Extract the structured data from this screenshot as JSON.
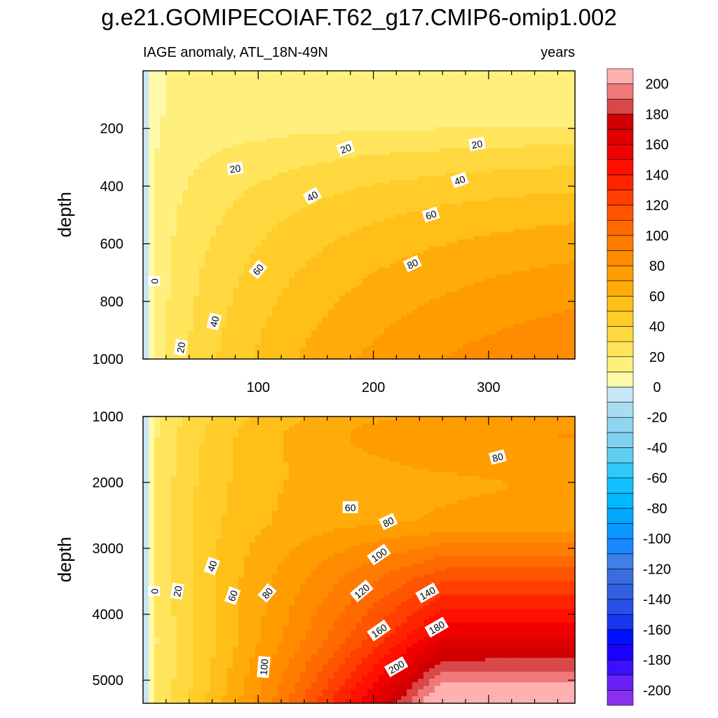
{
  "chart_data": {
    "type": "heatmap",
    "title": "g.e21.GOMIPECOIAF.T62_g17.CMIP6-omip1.002",
    "subtitle_left": "IAGE anomaly, ATL_18N-49N",
    "subtitle_right": "years",
    "x_ticklabels": [
      "100",
      "200",
      "300"
    ],
    "panels": [
      {
        "name": "upper",
        "ylabel": "depth",
        "xlim": [
          0,
          375
        ],
        "ylim": [
          1000,
          0
        ],
        "yticks": [
          200,
          400,
          600,
          800,
          1000
        ],
        "ytick_labels": [
          "200",
          "400",
          "600",
          "800",
          "1000"
        ],
        "contour_labels": [
          {
            "text": "0",
            "x": 10,
            "y": 730,
            "angle": -90
          },
          {
            "text": "20",
            "x": 33,
            "y": 960,
            "angle": -80
          },
          {
            "text": "40",
            "x": 62,
            "y": 870,
            "angle": -75
          },
          {
            "text": "60",
            "x": 100,
            "y": 690,
            "angle": -50
          },
          {
            "text": "20",
            "x": 80,
            "y": 340,
            "angle": -8
          },
          {
            "text": "20",
            "x": 176,
            "y": 270,
            "angle": -20
          },
          {
            "text": "20",
            "x": 290,
            "y": 255,
            "angle": -10
          },
          {
            "text": "40",
            "x": 147,
            "y": 435,
            "angle": -30
          },
          {
            "text": "40",
            "x": 275,
            "y": 380,
            "angle": -20
          },
          {
            "text": "60",
            "x": 250,
            "y": 500,
            "angle": -18
          },
          {
            "text": "80",
            "x": 234,
            "y": 670,
            "angle": -25
          }
        ]
      },
      {
        "name": "lower",
        "ylabel": "depth",
        "xlim": [
          0,
          375
        ],
        "ylim": [
          5350,
          1000
        ],
        "yticks": [
          1000,
          2000,
          3000,
          4000,
          5000
        ],
        "ytick_labels": [
          "1000",
          "2000",
          "3000",
          "4000",
          "5000"
        ],
        "contour_labels": [
          {
            "text": "0",
            "x": 10,
            "y": 3650,
            "angle": -90
          },
          {
            "text": "20",
            "x": 30,
            "y": 3650,
            "angle": -80
          },
          {
            "text": "40",
            "x": 60,
            "y": 3270,
            "angle": -70
          },
          {
            "text": "60",
            "x": 78,
            "y": 3720,
            "angle": -70
          },
          {
            "text": "80",
            "x": 108,
            "y": 3680,
            "angle": -50
          },
          {
            "text": "100",
            "x": 105,
            "y": 4800,
            "angle": -85
          },
          {
            "text": "60",
            "x": 180,
            "y": 2380,
            "angle": 0
          },
          {
            "text": "80",
            "x": 213,
            "y": 2600,
            "angle": -25
          },
          {
            "text": "80",
            "x": 308,
            "y": 1620,
            "angle": -15
          },
          {
            "text": "100",
            "x": 205,
            "y": 3100,
            "angle": -35
          },
          {
            "text": "120",
            "x": 190,
            "y": 3650,
            "angle": -40
          },
          {
            "text": "140",
            "x": 247,
            "y": 3680,
            "angle": -30
          },
          {
            "text": "160",
            "x": 205,
            "y": 4250,
            "angle": -35
          },
          {
            "text": "180",
            "x": 255,
            "y": 4200,
            "angle": -30
          },
          {
            "text": "200",
            "x": 220,
            "y": 4800,
            "angle": -30
          }
        ]
      }
    ],
    "colorbar": {
      "levels": [
        -210,
        -200,
        -190,
        -180,
        -170,
        -160,
        -150,
        -140,
        -130,
        -120,
        -110,
        -100,
        -90,
        -80,
        -70,
        -60,
        -50,
        -40,
        -30,
        -20,
        -10,
        0,
        10,
        20,
        30,
        40,
        50,
        60,
        70,
        80,
        90,
        100,
        110,
        120,
        130,
        140,
        150,
        160,
        170,
        180,
        190,
        200,
        210
      ],
      "colors": [
        "#8a30f0",
        "#6a20f8",
        "#3a10fe",
        "#1a00ff",
        "#0010ff",
        "#1838f0",
        "#2850e8",
        "#3060e0",
        "#3a6ee0",
        "#3f80e8",
        "#1a88ff",
        "#0a98ff",
        "#00a8ff",
        "#00b8ff",
        "#10c0ff",
        "#30c8f8",
        "#60cef0",
        "#80d0ef",
        "#90d4ef",
        "#a8dcf0",
        "#c8e6f5",
        "#fffaaa",
        "#fff07e",
        "#ffe45c",
        "#ffd840",
        "#ffcc2a",
        "#ffbe18",
        "#ffac0a",
        "#ff9c00",
        "#ff8c00",
        "#ff7c00",
        "#ff6a00",
        "#ff5400",
        "#ff3e00",
        "#ff2400",
        "#ff1000",
        "#f00000",
        "#e00000",
        "#d00000",
        "#d84848",
        "#f07878",
        "#ffb0b0"
      ],
      "labels": [
        "200",
        "180",
        "160",
        "140",
        "120",
        "100",
        "80",
        "60",
        "40",
        "20",
        "0",
        "-20",
        "-40",
        "-60",
        "-80",
        "-100",
        "-120",
        "-140",
        "-160",
        "-180",
        "-200"
      ]
    }
  }
}
